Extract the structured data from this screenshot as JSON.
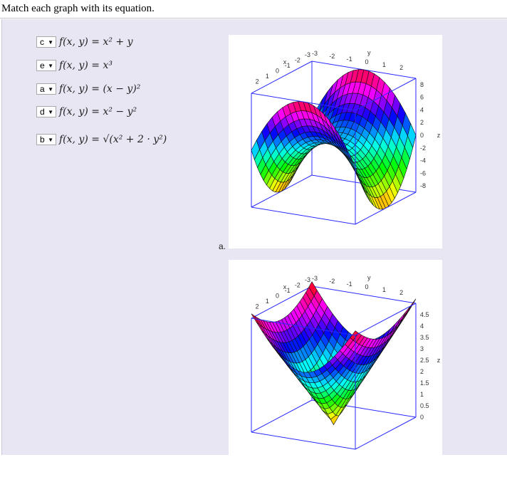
{
  "header": {
    "title": "Match each graph with its equation."
  },
  "equations": [
    {
      "selected": "c",
      "text": "f(x, y) = x² + y"
    },
    {
      "selected": "e",
      "text": "f(x, y) = x³"
    },
    {
      "selected": "a",
      "text": "f(x, y) = (x − y)²"
    },
    {
      "selected": "d",
      "text": "f(x, y) = x² − y²"
    },
    {
      "selected": "b",
      "text": "f(x, y) = √(x² + 2 · y²)"
    }
  ],
  "graphs": [
    {
      "label": "a.",
      "axis_x": "x",
      "axis_y": "y",
      "axis_z": "z",
      "x_ticks": [
        "2",
        "1",
        "0",
        "-1",
        "-2",
        "-3"
      ],
      "y_ticks": [
        "-3",
        "-2",
        "-1",
        "0",
        "1",
        "2"
      ],
      "z_ticks": [
        "8",
        "6",
        "4",
        "2",
        "0",
        "-2",
        "-4",
        "-6",
        "-8"
      ],
      "zrange": [
        -9,
        9
      ]
    },
    {
      "label": "",
      "axis_x": "x",
      "axis_y": "y",
      "axis_z": "z",
      "x_ticks": [
        "2",
        "1",
        "0",
        "-1",
        "-2",
        "-3"
      ],
      "y_ticks": [
        "-3",
        "-2",
        "-1",
        "0",
        "1",
        "2"
      ],
      "z_ticks": [
        "4.5",
        "4",
        "3.5",
        "3",
        "2.5",
        "2",
        "1.5",
        "1",
        "0.5",
        "0"
      ],
      "zrange": [
        0,
        5
      ]
    }
  ],
  "colors": {
    "box": "#2b2bff",
    "background": "#e8e6f2"
  }
}
